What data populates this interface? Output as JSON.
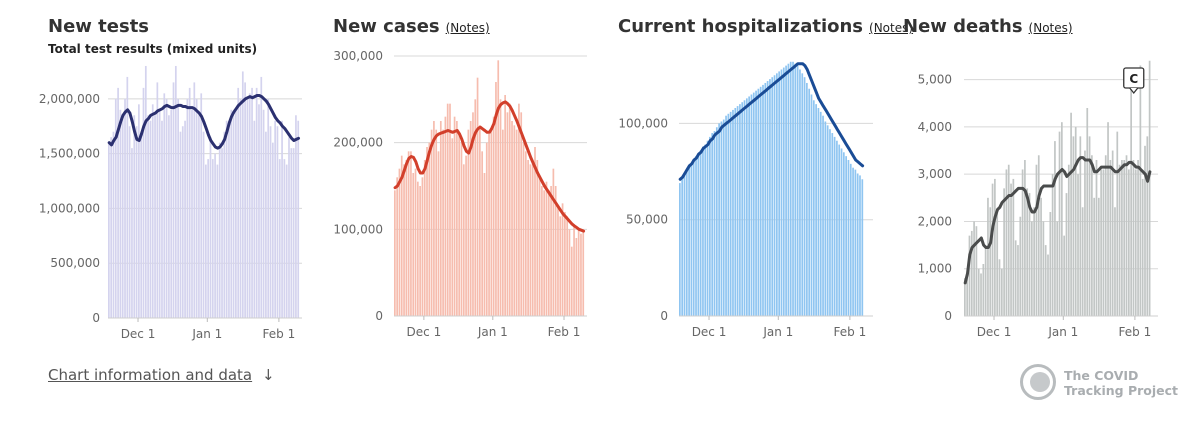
{
  "panels": [
    {
      "title": "New tests",
      "subtitle": "Total test results (mixed units)",
      "notes": ""
    },
    {
      "title": "New cases",
      "notes": "(Notes)"
    },
    {
      "title": "Current hospitalizations",
      "notes": "(Notes)"
    },
    {
      "title": "New deaths",
      "notes": "(Notes)"
    }
  ],
  "footer": {
    "link": "Chart information and data",
    "arrow": "↓"
  },
  "logo": {
    "line1": "The COVID",
    "line2": "Tracking Project"
  },
  "annotation": {
    "label": "C"
  },
  "colors": {
    "tests_bar": "#d4d3ee",
    "tests_line": "#2b3070",
    "cases_bar": "#f6bcae",
    "cases_line": "#d23f2b",
    "hosp_bar": "#8fc5f1",
    "hosp_line": "#1a4c96",
    "deaths_bar": "#c2c6c5",
    "deaths_line": "#4a4c4c"
  },
  "chart_data": [
    {
      "type": "bar",
      "title": "New tests",
      "subtitle": "Total test results (mixed units)",
      "ylim": [
        0,
        2400000
      ],
      "yticks": [
        0,
        500000,
        1000000,
        1500000,
        2000000
      ],
      "ytick_labels": [
        "0",
        "500,000",
        "1,000,000",
        "1,500,000",
        "2,000,000"
      ],
      "xticks": [
        "Dec 1",
        "Jan 1",
        "Feb 1"
      ],
      "xtick_days": [
        13,
        43,
        74
      ],
      "grid": true,
      "values": [
        1600000,
        1650000,
        1700000,
        2000000,
        2100000,
        1900000,
        1850000,
        2000000,
        2200000,
        1750000,
        1550000,
        1850000,
        1750000,
        1950000,
        1700000,
        2100000,
        2300000,
        1850000,
        1800000,
        1950000,
        1850000,
        2150000,
        1900000,
        1800000,
        2050000,
        2000000,
        1850000,
        1900000,
        2150000,
        2300000,
        2000000,
        1700000,
        1750000,
        1800000,
        2000000,
        2100000,
        1900000,
        2150000,
        2000000,
        1850000,
        2050000,
        1700000,
        1400000,
        1450000,
        1650000,
        1450000,
        1500000,
        1400000,
        1600000,
        1550000,
        1700000,
        1800000,
        1800000,
        1900000,
        1850000,
        1900000,
        2100000,
        2000000,
        2250000,
        2150000,
        2000000,
        2050000,
        2100000,
        1800000,
        2100000,
        1950000,
        2200000,
        1900000,
        1700000,
        2000000,
        1750000,
        1600000,
        1800000,
        1750000,
        1450000,
        1800000,
        1450000,
        1400000,
        1650000,
        1550000,
        1550000,
        1850000,
        1800000
      ],
      "series": [
        {
          "values": [
            1600000,
            1580000,
            1620000,
            1650000,
            1720000,
            1790000,
            1850000,
            1880000,
            1900000,
            1870000,
            1790000,
            1700000,
            1630000,
            1620000,
            1680000,
            1750000,
            1800000,
            1820000,
            1850000,
            1860000,
            1870000,
            1890000,
            1900000,
            1910000,
            1930000,
            1940000,
            1930000,
            1920000,
            1920000,
            1930000,
            1940000,
            1940000,
            1930000,
            1930000,
            1920000,
            1920000,
            1920000,
            1910000,
            1890000,
            1870000,
            1840000,
            1790000,
            1730000,
            1670000,
            1620000,
            1590000,
            1560000,
            1550000,
            1560000,
            1590000,
            1630000,
            1700000,
            1780000,
            1840000,
            1880000,
            1910000,
            1940000,
            1960000,
            1980000,
            2000000,
            2010000,
            2020000,
            2010000,
            2020000,
            2030000,
            2030000,
            2020000,
            2000000,
            1980000,
            1950000,
            1910000,
            1870000,
            1830000,
            1800000,
            1780000,
            1750000,
            1730000,
            1700000,
            1670000,
            1640000,
            1620000,
            1630000,
            1640000
          ]
        }
      ]
    },
    {
      "type": "bar",
      "title": "New cases",
      "ylim": [
        0,
        300000
      ],
      "yticks": [
        0,
        100000,
        200000,
        300000
      ],
      "ytick_labels": [
        "0",
        "100,000",
        "200,000",
        "300,000"
      ],
      "xticks": [
        "Dec 1",
        "Jan 1",
        "Feb 1"
      ],
      "xtick_days": [
        13,
        43,
        74
      ],
      "grid": true,
      "values": [
        145000,
        160000,
        170000,
        185000,
        175000,
        180000,
        190000,
        190000,
        165000,
        170000,
        155000,
        150000,
        160000,
        180000,
        195000,
        200000,
        215000,
        225000,
        215000,
        190000,
        225000,
        215000,
        230000,
        245000,
        245000,
        205000,
        230000,
        225000,
        210000,
        200000,
        175000,
        185000,
        215000,
        225000,
        235000,
        250000,
        275000,
        220000,
        190000,
        165000,
        200000,
        210000,
        215000,
        230000,
        270000,
        295000,
        250000,
        215000,
        255000,
        235000,
        245000,
        225000,
        220000,
        215000,
        245000,
        235000,
        200000,
        190000,
        180000,
        175000,
        180000,
        195000,
        180000,
        160000,
        150000,
        145000,
        155000,
        145000,
        150000,
        170000,
        150000,
        125000,
        115000,
        130000,
        120000,
        115000,
        100000,
        80000,
        105000,
        90000,
        100000,
        95000,
        100000
      ],
      "series": [
        {
          "values": [
            148000,
            150000,
            155000,
            160000,
            168000,
            176000,
            182000,
            184000,
            183000,
            178000,
            170000,
            165000,
            165000,
            170000,
            180000,
            190000,
            198000,
            204000,
            208000,
            210000,
            211000,
            212000,
            213000,
            214000,
            213000,
            212000,
            213000,
            214000,
            210000,
            204000,
            196000,
            190000,
            188000,
            195000,
            205000,
            212000,
            216000,
            218000,
            216000,
            214000,
            212000,
            212000,
            216000,
            222000,
            232000,
            240000,
            244000,
            246000,
            247000,
            245000,
            242000,
            237000,
            231000,
            225000,
            218000,
            211000,
            204000,
            197000,
            190000,
            183000,
            177000,
            171000,
            165000,
            160000,
            155000,
            150000,
            146000,
            142000,
            138000,
            134000,
            130000,
            126000,
            122000,
            118000,
            115000,
            112000,
            109000,
            106000,
            104000,
            102000,
            100000,
            99000,
            98000
          ]
        }
      ]
    },
    {
      "type": "bar",
      "title": "Current hospitalizations",
      "ylim": [
        0,
        135000
      ],
      "yticks": [
        0,
        50000,
        100000
      ],
      "ytick_labels": [
        "0",
        "50,000",
        "100,000"
      ],
      "xticks": [
        "Dec 1",
        "Jan 1",
        "Feb 1"
      ],
      "xtick_days": [
        13,
        43,
        74
      ],
      "grid": true,
      "values": [
        69000,
        71000,
        73000,
        75000,
        77000,
        79000,
        81000,
        83000,
        84000,
        86000,
        88000,
        89000,
        91000,
        93000,
        95000,
        96000,
        98000,
        100000,
        101000,
        102000,
        104000,
        105000,
        106000,
        107000,
        108000,
        109000,
        110000,
        111000,
        112000,
        113000,
        114000,
        115000,
        116000,
        117000,
        118000,
        119000,
        120000,
        121000,
        122000,
        123000,
        124000,
        125000,
        126000,
        127000,
        128000,
        129000,
        130000,
        131000,
        132000,
        132000,
        131000,
        130000,
        128000,
        126000,
        124000,
        121000,
        118000,
        115000,
        112000,
        110000,
        108000,
        106000,
        104000,
        101000,
        99000,
        97000,
        95000,
        93000,
        91000,
        89000,
        87000,
        85000,
        83000,
        81000,
        79000,
        77000,
        76000,
        74000,
        73000,
        71000
      ],
      "series": [
        {
          "values": [
            71000,
            72000,
            74000,
            76000,
            78000,
            79000,
            81000,
            82000,
            84000,
            85000,
            87000,
            88000,
            89000,
            91000,
            92000,
            94000,
            95000,
            96000,
            98000,
            99000,
            100000,
            101000,
            102000,
            103000,
            104000,
            105000,
            106000,
            107000,
            108000,
            109000,
            110000,
            111000,
            112000,
            113000,
            114000,
            115000,
            116000,
            117000,
            118000,
            119000,
            120000,
            121000,
            122000,
            123000,
            124000,
            125000,
            126000,
            127000,
            128000,
            129000,
            130000,
            131000,
            131000,
            131000,
            130000,
            128000,
            125000,
            122000,
            119000,
            116000,
            113000,
            111000,
            109000,
            107000,
            105000,
            103000,
            101000,
            99000,
            97000,
            95000,
            93000,
            91000,
            89000,
            87000,
            85000,
            83000,
            81000,
            80000,
            79000,
            78000
          ]
        }
      ]
    },
    {
      "type": "bar",
      "title": "New deaths",
      "ylim": [
        0,
        5500
      ],
      "yticks": [
        0,
        1000,
        2000,
        3000,
        4000,
        5000
      ],
      "ytick_labels": [
        "0",
        "1,000",
        "2,000",
        "3,000",
        "4,000",
        "5,000"
      ],
      "xticks": [
        "Dec 1",
        "Jan 1",
        "Feb 1"
      ],
      "xtick_days": [
        13,
        43,
        74
      ],
      "grid": true,
      "annotation": {
        "label": "C",
        "day": 73
      },
      "values": [
        800,
        850,
        1700,
        1800,
        2000,
        1900,
        1000,
        900,
        1100,
        1500,
        2500,
        2300,
        2800,
        2900,
        2200,
        1200,
        1000,
        2700,
        3100,
        3200,
        2800,
        2900,
        1600,
        1500,
        2100,
        3100,
        3300,
        2700,
        2600,
        2000,
        2300,
        3200,
        3400,
        2500,
        2000,
        1500,
        1300,
        2200,
        3000,
        3700,
        2000,
        3900,
        4100,
        1700,
        2600,
        3200,
        4300,
        3800,
        4000,
        3000,
        3800,
        2300,
        3500,
        4400,
        3800,
        3400,
        2500,
        3300,
        2500,
        3100,
        3100,
        3400,
        4100,
        3300,
        3500,
        2300,
        3900,
        3200,
        3300,
        3300,
        3400,
        3100,
        5200,
        3300,
        3100,
        3300,
        5300,
        2900,
        3600,
        3800,
        5400
      ],
      "series": [
        {
          "values": [
            700,
            900,
            1300,
            1450,
            1500,
            1550,
            1600,
            1650,
            1500,
            1450,
            1450,
            1550,
            1900,
            2100,
            2250,
            2300,
            2400,
            2450,
            2500,
            2550,
            2550,
            2600,
            2650,
            2700,
            2700,
            2700,
            2650,
            2500,
            2300,
            2200,
            2200,
            2300,
            2550,
            2700,
            2750,
            2750,
            2750,
            2750,
            2750,
            2900,
            3000,
            3050,
            3100,
            3050,
            2950,
            3000,
            3050,
            3100,
            3200,
            3300,
            3350,
            3350,
            3300,
            3300,
            3300,
            3200,
            3050,
            3050,
            3100,
            3150,
            3150,
            3150,
            3150,
            3150,
            3100,
            3050,
            3050,
            3100,
            3150,
            3200,
            3200,
            3250,
            3250,
            3200,
            3150,
            3150,
            3100,
            3050,
            3000,
            2850,
            3050
          ]
        }
      ]
    }
  ]
}
